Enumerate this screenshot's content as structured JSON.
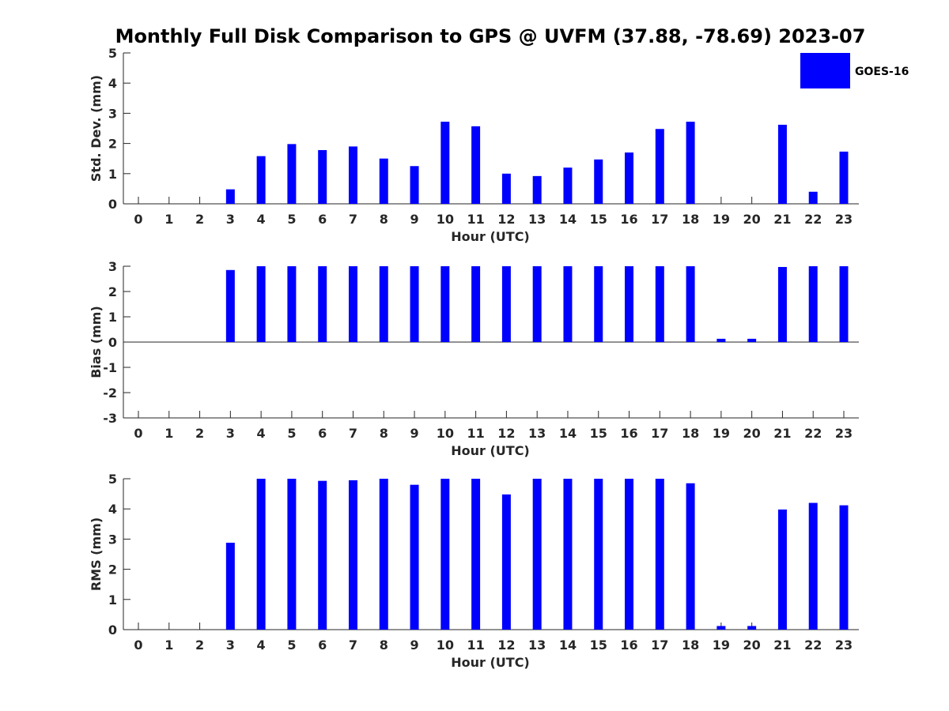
{
  "chart_data": {
    "title": "Monthly Full Disk Comparison to GPS @ UVFM (37.88, -78.69) 2023-07",
    "legend": {
      "label": "GOES-16",
      "location": "top-right"
    },
    "series_color": "#0000ff",
    "categories": [
      "0",
      "1",
      "2",
      "3",
      "4",
      "5",
      "6",
      "7",
      "8",
      "9",
      "10",
      "11",
      "12",
      "13",
      "14",
      "15",
      "16",
      "17",
      "18",
      "19",
      "20",
      "21",
      "22",
      "23"
    ],
    "panels": [
      {
        "id": "std",
        "type": "bar",
        "ylabel": "Std. Dev. (mm)",
        "xlabel": "Hour (UTC)",
        "ylim": [
          0,
          5
        ],
        "yticks": [
          "0",
          "1",
          "2",
          "3",
          "4",
          "5"
        ],
        "values": [
          null,
          null,
          null,
          0.48,
          1.58,
          1.98,
          1.78,
          1.9,
          1.5,
          1.25,
          2.72,
          2.57,
          1.0,
          0.92,
          1.2,
          1.47,
          1.7,
          2.48,
          2.72,
          null,
          null,
          2.62,
          0.4,
          1.73
        ]
      },
      {
        "id": "bias",
        "type": "bar",
        "ylabel": "Bias (mm)",
        "xlabel": "Hour (UTC)",
        "ylim": [
          -3,
          3
        ],
        "yticks": [
          "-3",
          "-2",
          "-1",
          "0",
          "1",
          "2",
          "3"
        ],
        "values": [
          null,
          null,
          null,
          2.85,
          3.0,
          3.0,
          3.0,
          3.0,
          3.0,
          3.0,
          3.0,
          3.0,
          3.0,
          3.0,
          3.0,
          3.0,
          3.0,
          3.0,
          3.0,
          0.13,
          0.13,
          2.97,
          3.0,
          3.0
        ]
      },
      {
        "id": "rms",
        "type": "bar",
        "ylabel": "RMS (mm)",
        "xlabel": "Hour (UTC)",
        "ylim": [
          0,
          5
        ],
        "yticks": [
          "0",
          "1",
          "2",
          "3",
          "4",
          "5"
        ],
        "values": [
          null,
          null,
          null,
          2.88,
          5.0,
          5.0,
          4.93,
          4.95,
          5.0,
          4.8,
          5.0,
          5.0,
          4.48,
          5.0,
          5.0,
          5.0,
          5.0,
          5.0,
          4.85,
          0.12,
          0.12,
          3.98,
          4.2,
          4.12
        ]
      }
    ]
  }
}
